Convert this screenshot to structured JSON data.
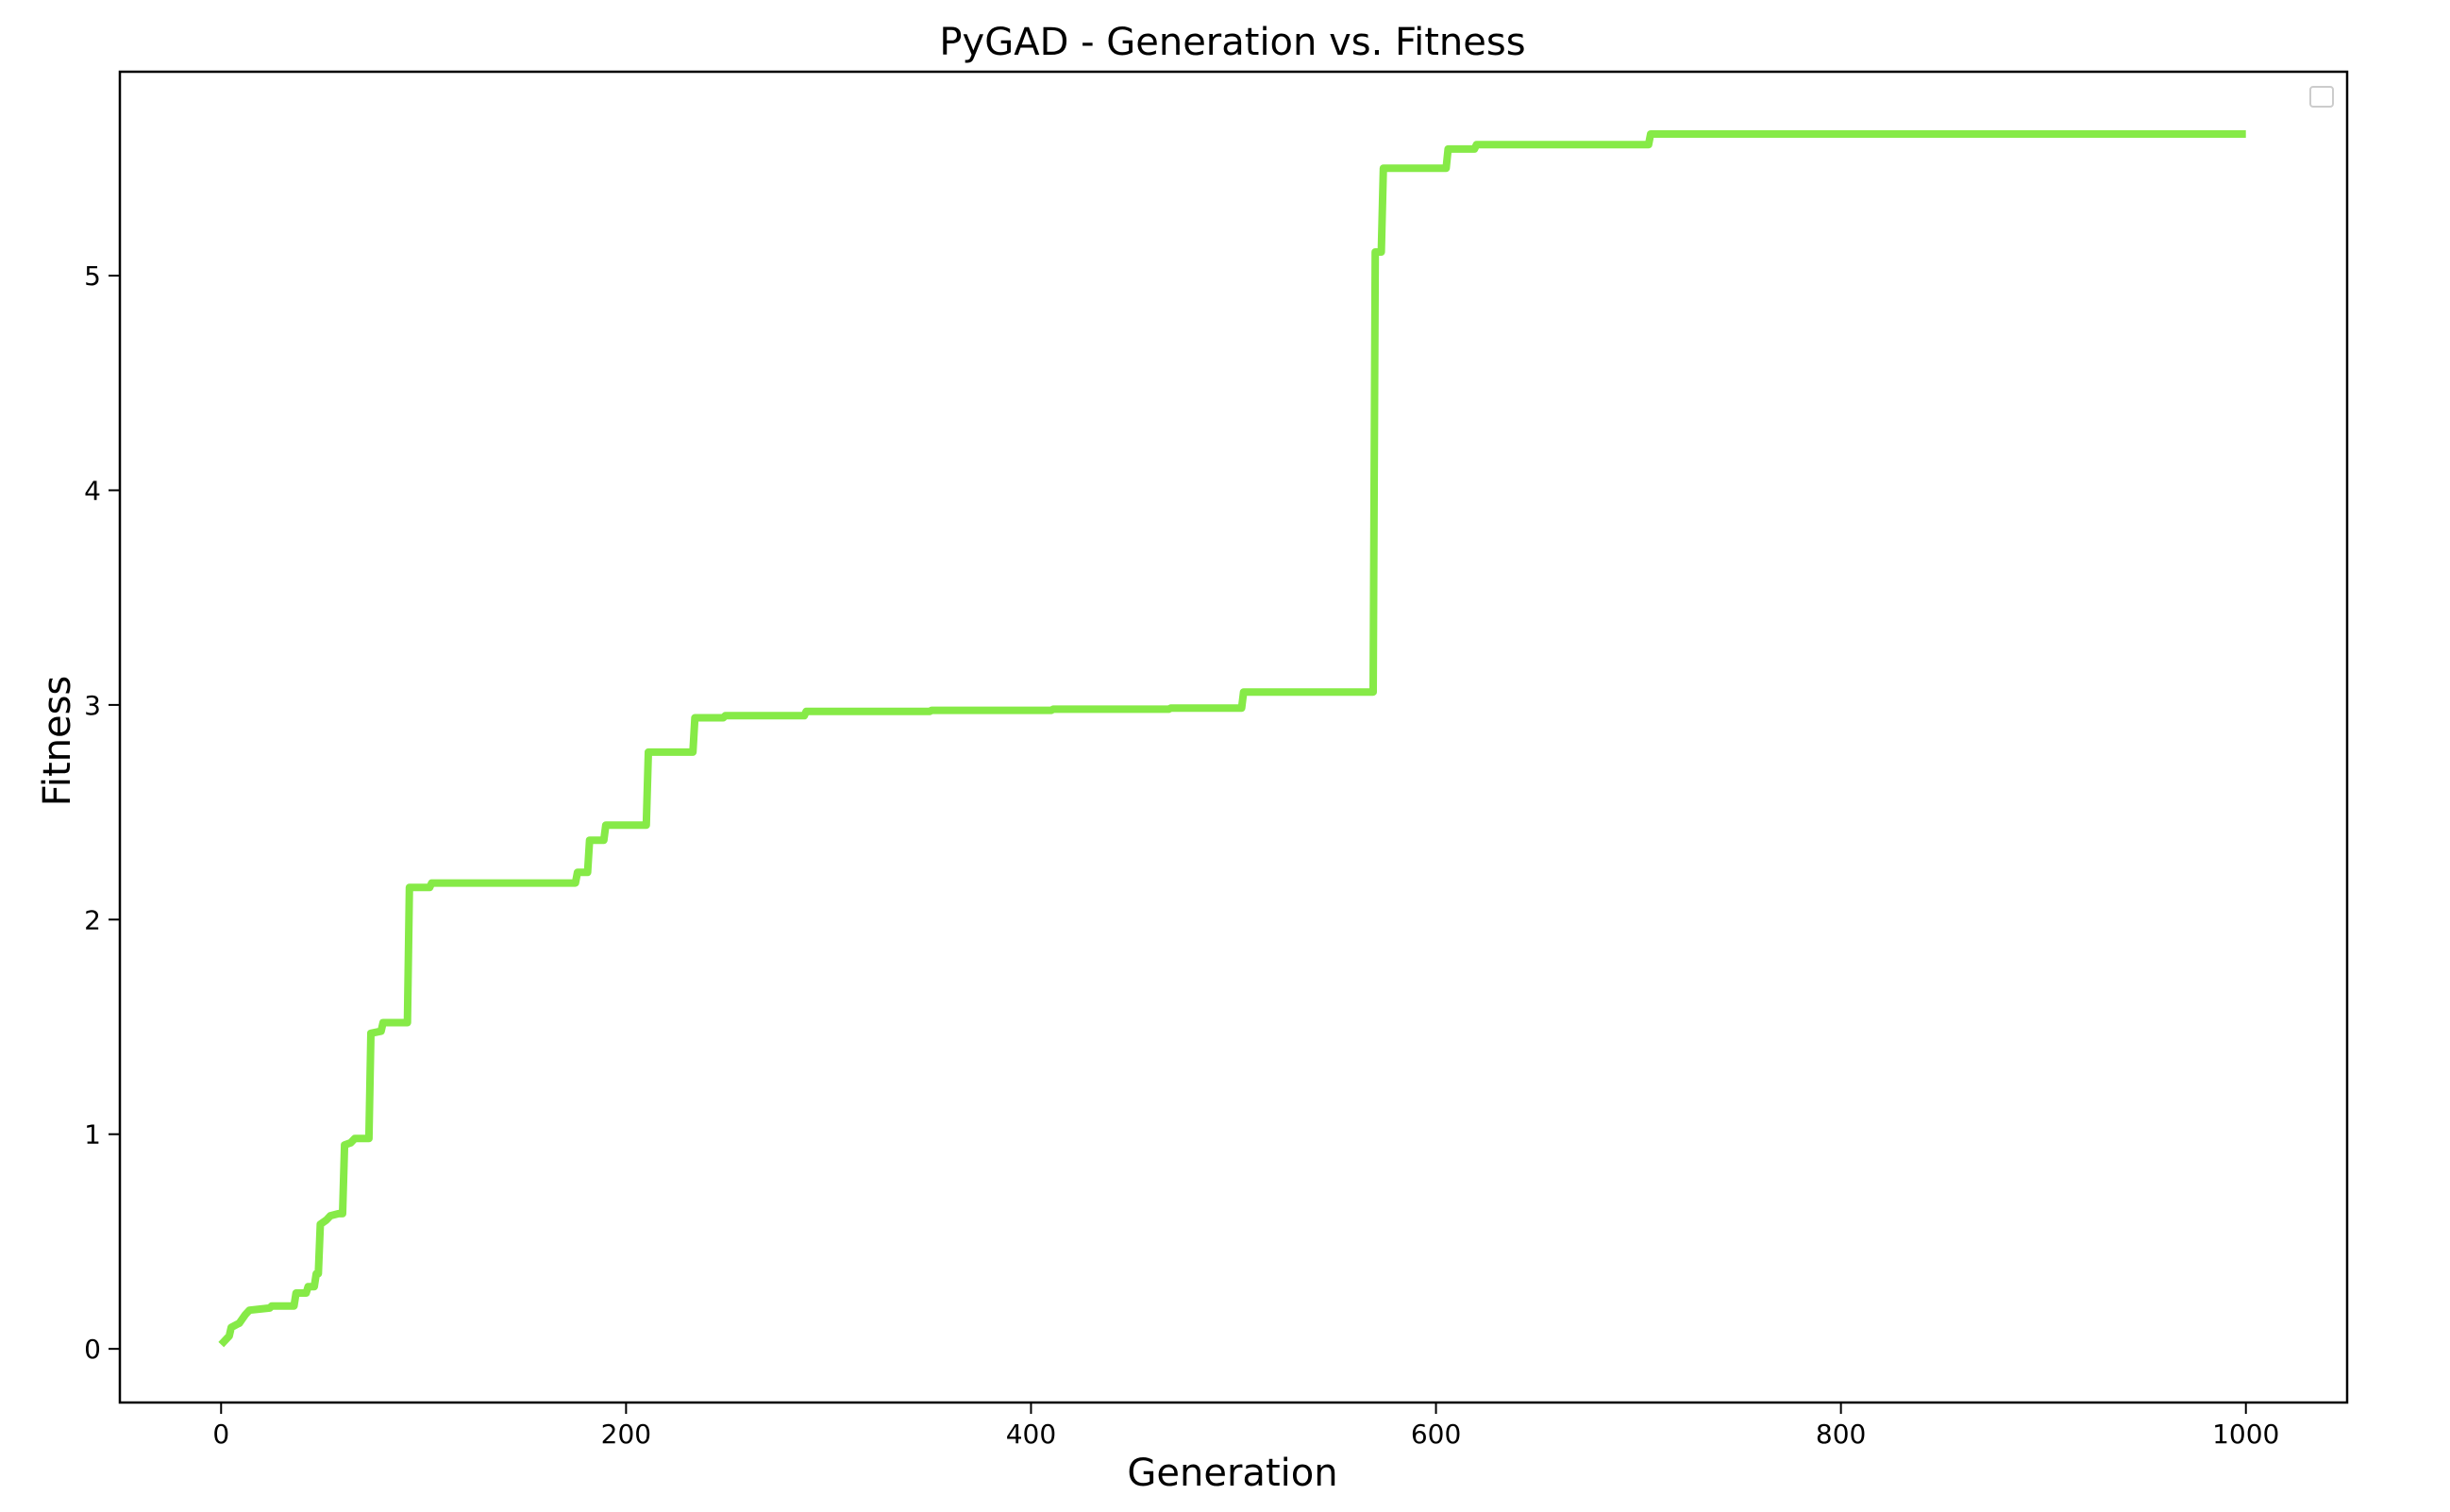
{
  "chart_data": {
    "type": "line",
    "title": "PyGAD - Generation vs. Fitness",
    "xlabel": "Generation",
    "ylabel": "Fitness",
    "xlim": [
      -50,
      1050
    ],
    "ylim": [
      -0.25,
      5.95
    ],
    "xticks": [
      0,
      200,
      400,
      600,
      800,
      1000
    ],
    "yticks": [
      0,
      1,
      2,
      3,
      4,
      5
    ],
    "grid": false,
    "legend": "top-right",
    "series": [
      {
        "color": "#86ea47",
        "points": [
          [
            0,
            0.02
          ],
          [
            4,
            0.06
          ],
          [
            5,
            0.1
          ],
          [
            9,
            0.12
          ],
          [
            12,
            0.16
          ],
          [
            14,
            0.18
          ],
          [
            24,
            0.19
          ],
          [
            25,
            0.2
          ],
          [
            36,
            0.2
          ],
          [
            37,
            0.26
          ],
          [
            42,
            0.26
          ],
          [
            43,
            0.29
          ],
          [
            46,
            0.29
          ],
          [
            47,
            0.35
          ],
          [
            48,
            0.35
          ],
          [
            49,
            0.58
          ],
          [
            52,
            0.6
          ],
          [
            54,
            0.62
          ],
          [
            58,
            0.63
          ],
          [
            60,
            0.63
          ],
          [
            61,
            0.95
          ],
          [
            64,
            0.96
          ],
          [
            66,
            0.98
          ],
          [
            73,
            0.98
          ],
          [
            74,
            1.47
          ],
          [
            79,
            1.48
          ],
          [
            80,
            1.52
          ],
          [
            92,
            1.52
          ],
          [
            93,
            2.15
          ],
          [
            103,
            2.15
          ],
          [
            104,
            2.17
          ],
          [
            175,
            2.17
          ],
          [
            176,
            2.22
          ],
          [
            181,
            2.22
          ],
          [
            182,
            2.37
          ],
          [
            189,
            2.37
          ],
          [
            190,
            2.44
          ],
          [
            210,
            2.44
          ],
          [
            211,
            2.78
          ],
          [
            233,
            2.78
          ],
          [
            234,
            2.94
          ],
          [
            248,
            2.94
          ],
          [
            249,
            2.95
          ],
          [
            288,
            2.95
          ],
          [
            289,
            2.97
          ],
          [
            350,
            2.97
          ],
          [
            351,
            2.975
          ],
          [
            410,
            2.975
          ],
          [
            411,
            2.98
          ],
          [
            468,
            2.98
          ],
          [
            469,
            2.985
          ],
          [
            504,
            2.985
          ],
          [
            505,
            3.06
          ],
          [
            569,
            3.06
          ],
          [
            570,
            5.11
          ],
          [
            573,
            5.11
          ],
          [
            574,
            5.5
          ],
          [
            605,
            5.5
          ],
          [
            606,
            5.59
          ],
          [
            619,
            5.59
          ],
          [
            620,
            5.61
          ],
          [
            705,
            5.61
          ],
          [
            706,
            5.66
          ],
          [
            1000,
            5.66
          ]
        ]
      }
    ]
  }
}
